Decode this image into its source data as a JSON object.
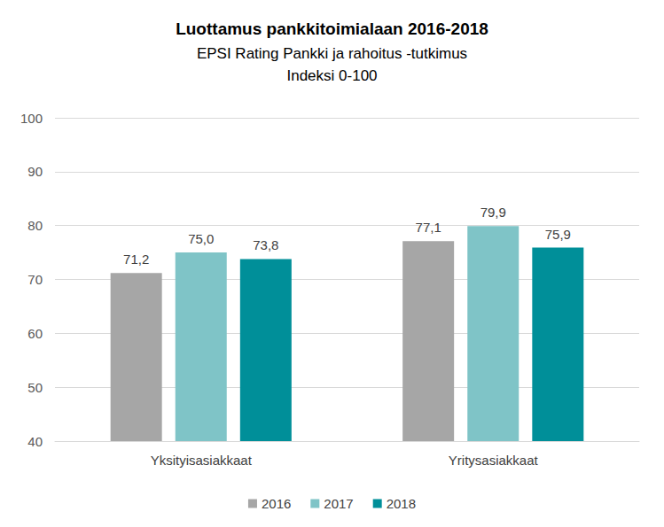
{
  "chart_data": {
    "type": "bar",
    "title": "Luottamus pankkitoimialaan 2016-2018",
    "subtitle": [
      "EPSI Rating Pankki ja rahoitus -tutkimus",
      "Indeksi 0-100"
    ],
    "categories": [
      "Yksityisasiakkaat",
      "Yritysasiakkaat"
    ],
    "series": [
      {
        "name": "2016",
        "color": "#a6a6a6",
        "values": [
          71.2,
          77.1
        ],
        "value_labels": [
          "71,2",
          "77,1"
        ]
      },
      {
        "name": "2017",
        "color": "#7fc4c7",
        "values": [
          75.0,
          79.9
        ],
        "value_labels": [
          "75,0",
          "79,9"
        ]
      },
      {
        "name": "2018",
        "color": "#008f99",
        "values": [
          73.8,
          75.9
        ],
        "value_labels": [
          "73,8",
          "75,9"
        ]
      }
    ],
    "ylim": [
      40,
      100
    ],
    "yticks": [
      40,
      50,
      60,
      70,
      80,
      90,
      100
    ],
    "grid": true,
    "legend": "bottom",
    "data_labels": true
  }
}
